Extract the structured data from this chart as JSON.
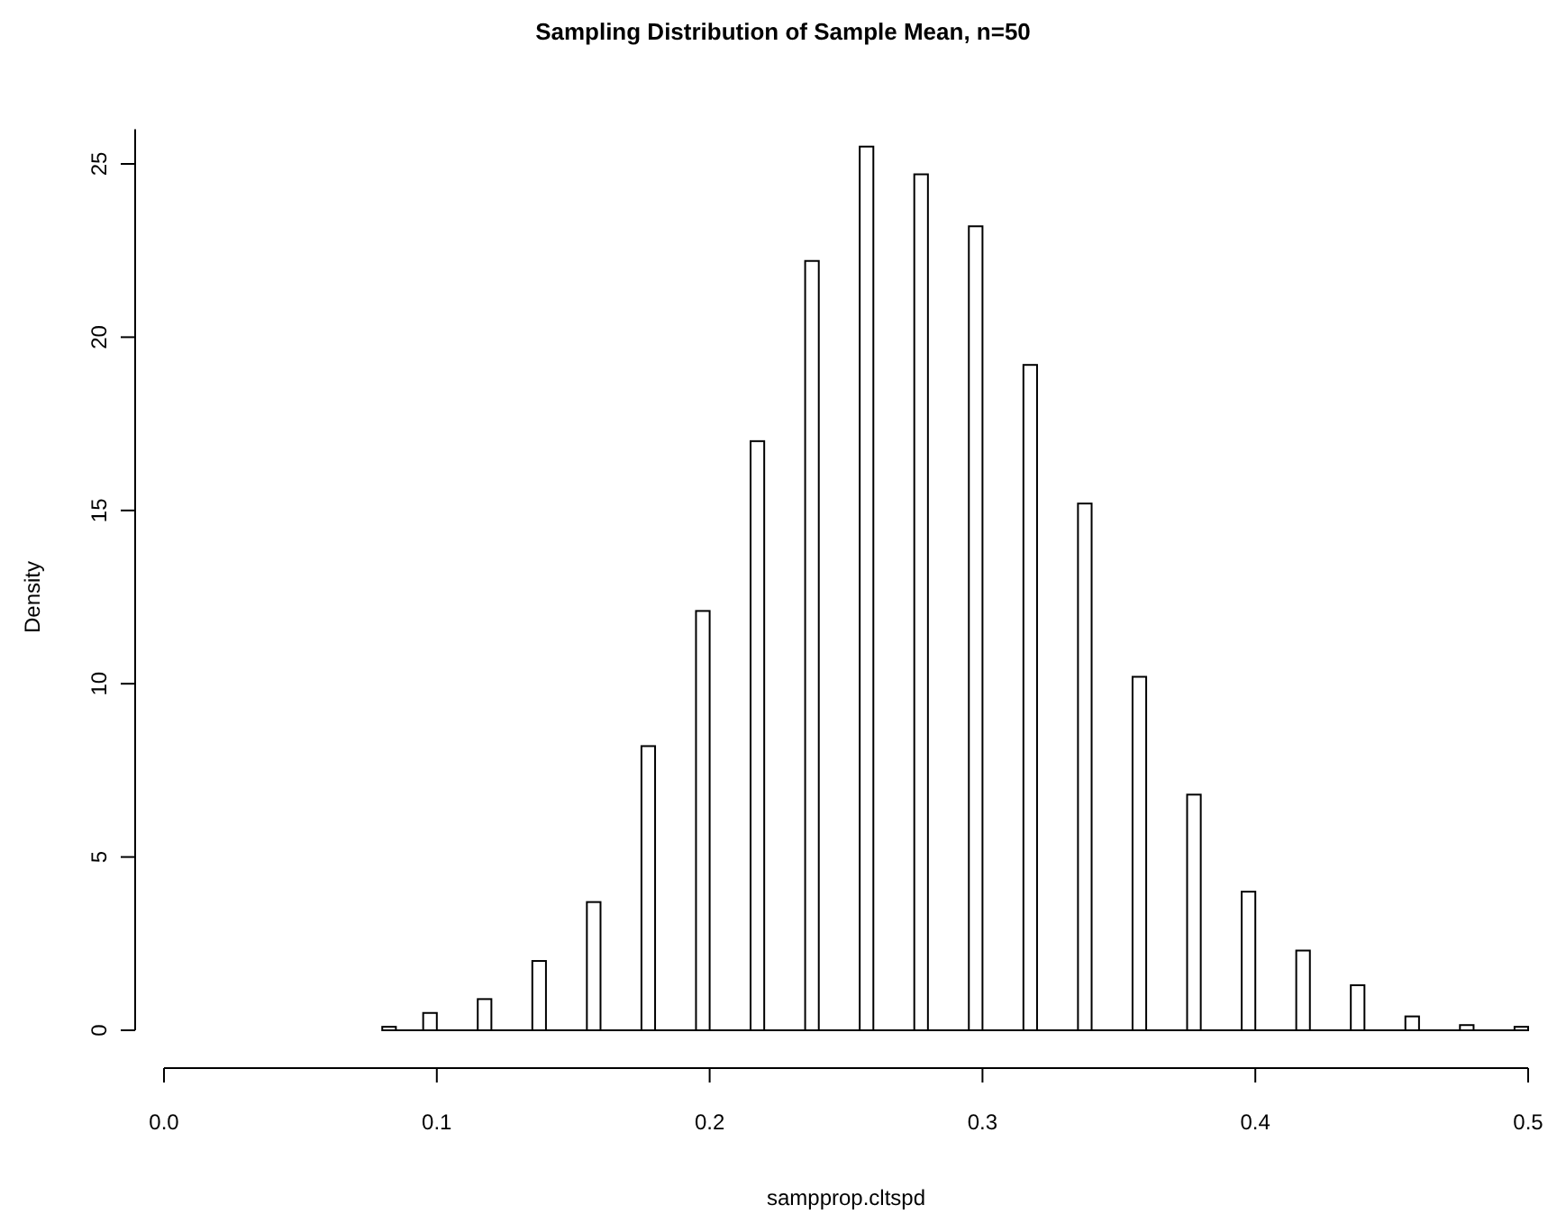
{
  "chart_data": {
    "type": "histogram",
    "title": "Sampling Distribution of Sample Mean, n=50",
    "xlabel": "sampprop.cltspd",
    "ylabel": "Density",
    "bins": [
      0.08,
      0.085,
      0.09,
      0.095,
      0.1,
      0.105,
      0.11,
      0.115,
      0.12,
      0.125,
      0.13,
      0.135,
      0.14,
      0.145,
      0.15,
      0.155,
      0.16,
      0.165,
      0.17,
      0.175,
      0.18,
      0.185,
      0.19,
      0.195,
      0.2,
      0.205,
      0.21,
      0.215,
      0.22,
      0.225,
      0.23,
      0.235,
      0.24,
      0.245,
      0.25,
      0.255,
      0.26,
      0.265,
      0.27,
      0.275,
      0.28,
      0.285,
      0.29,
      0.295,
      0.3,
      0.305,
      0.31,
      0.315,
      0.32,
      0.325,
      0.33,
      0.335,
      0.34,
      0.345,
      0.35,
      0.355,
      0.36,
      0.365,
      0.37,
      0.375,
      0.38,
      0.385,
      0.39,
      0.395,
      0.4,
      0.405,
      0.41,
      0.415,
      0.42,
      0.425,
      0.43,
      0.435,
      0.44,
      0.445,
      0.45,
      0.455,
      0.46,
      0.465,
      0.47,
      0.475,
      0.48,
      0.485,
      0.49,
      0.495,
      0.5
    ],
    "values": [
      0.1,
      0,
      0,
      0.5,
      0,
      0,
      0,
      0.9,
      0,
      0,
      0,
      2.0,
      0,
      0,
      0,
      3.7,
      0,
      0,
      0,
      8.2,
      0,
      0,
      0,
      12.1,
      0,
      0,
      0,
      17.0,
      0,
      0,
      0,
      22.2,
      0,
      0,
      0,
      25.5,
      0,
      0,
      0,
      24.7,
      0,
      0,
      0,
      23.2,
      0,
      0,
      0,
      19.2,
      0,
      0,
      0,
      15.2,
      0,
      0,
      0,
      10.2,
      0,
      0,
      0,
      6.8,
      0,
      0,
      0,
      4.0,
      0,
      0,
      0,
      2.3,
      0,
      0,
      0,
      1.3,
      0,
      0,
      0,
      0.4,
      0,
      0,
      0,
      0.15,
      0,
      0,
      0,
      0.1
    ],
    "color": "#ffffff",
    "xlim": [
      0,
      0.5
    ],
    "xticks": [
      {
        "value": 0,
        "label": "0.0"
      },
      0.1,
      0.2,
      0.3,
      0.4,
      0.5
    ],
    "ylim": [
      0,
      26
    ],
    "yticks": [
      0,
      5,
      10,
      15,
      20,
      25
    ]
  }
}
